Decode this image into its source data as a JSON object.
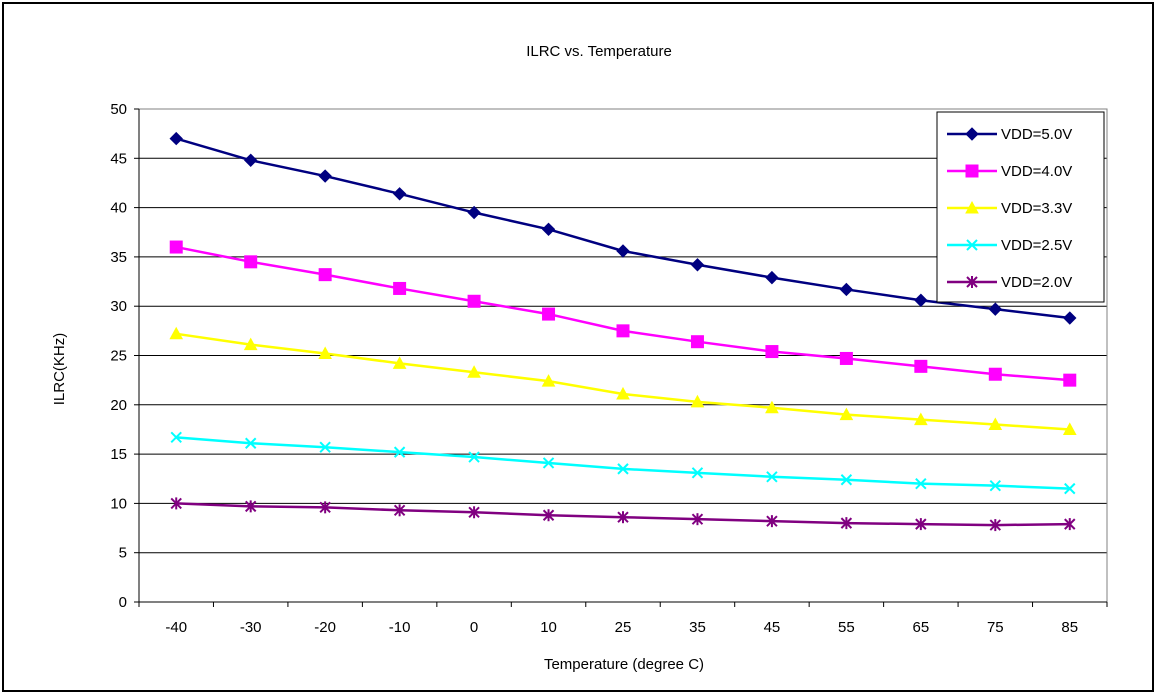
{
  "chart_data": {
    "type": "line",
    "title": "ILRC vs. Temperature",
    "xlabel": "Temperature (degree C)",
    "ylabel": "ILRC(KHz)",
    "categories": [
      "-40",
      "-30",
      "-20",
      "-10",
      "0",
      "10",
      "25",
      "35",
      "45",
      "55",
      "65",
      "75",
      "85"
    ],
    "ylim": [
      0,
      50
    ],
    "yticks": [
      "0",
      "5",
      "10",
      "15",
      "20",
      "25",
      "30",
      "35",
      "40",
      "45",
      "50"
    ],
    "grid": "horizontal",
    "legend_position": "top-right",
    "series": [
      {
        "name": "VDD=5.0V",
        "color": "#000080",
        "marker": "diamond",
        "values": [
          47.0,
          44.8,
          43.2,
          41.4,
          39.5,
          37.8,
          35.6,
          34.2,
          32.9,
          31.7,
          30.6,
          29.7,
          28.8
        ]
      },
      {
        "name": "VDD=4.0V",
        "color": "#FF00FF",
        "marker": "square",
        "values": [
          36.0,
          34.5,
          33.2,
          31.8,
          30.5,
          29.2,
          27.5,
          26.4,
          25.4,
          24.7,
          23.9,
          23.1,
          22.5
        ]
      },
      {
        "name": "VDD=3.3V",
        "color": "#FFFF00",
        "marker": "triangle",
        "values": [
          27.2,
          26.1,
          25.2,
          24.2,
          23.3,
          22.4,
          21.1,
          20.3,
          19.7,
          19.0,
          18.5,
          18.0,
          17.5
        ]
      },
      {
        "name": "VDD=2.5V",
        "color": "#00FFFF",
        "marker": "x",
        "values": [
          16.7,
          16.1,
          15.7,
          15.2,
          14.7,
          14.1,
          13.5,
          13.1,
          12.7,
          12.4,
          12.0,
          11.8,
          11.5
        ]
      },
      {
        "name": "VDD=2.0V",
        "color": "#800080",
        "marker": "star",
        "values": [
          10.0,
          9.7,
          9.6,
          9.3,
          9.1,
          8.8,
          8.6,
          8.4,
          8.2,
          8.0,
          7.9,
          7.8,
          7.9
        ]
      }
    ]
  }
}
